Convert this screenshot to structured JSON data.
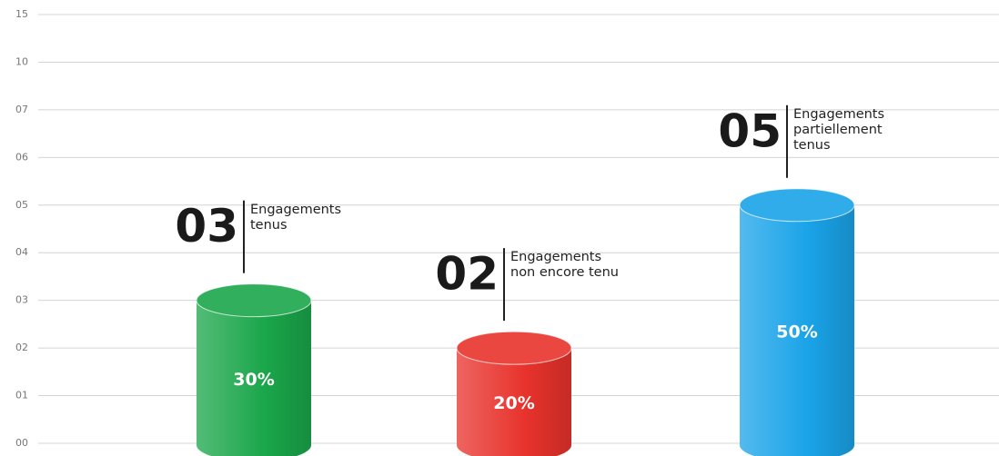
{
  "chart_data": {
    "type": "cylinder-bar",
    "categories": [
      "Engagements\ntenus",
      "Engagements\nnon encore tenu",
      "Engagements\npartiellement\ntenus"
    ],
    "values": [
      3,
      2,
      5
    ],
    "value_labels": [
      "03",
      "02",
      "05"
    ],
    "shares": [
      30,
      20,
      50
    ],
    "share_labels": [
      "30%",
      "20%",
      "50%"
    ],
    "colors": [
      "#1aa64a",
      "#e8322c",
      "#1aa3e8"
    ],
    "ylim": [
      0,
      15
    ],
    "yticks": [
      {
        "value": 0,
        "label": "00"
      },
      {
        "value": 1,
        "label": "01"
      },
      {
        "value": 2,
        "label": "02"
      },
      {
        "value": 3,
        "label": "03"
      },
      {
        "value": 4,
        "label": "04"
      },
      {
        "value": 5,
        "label": "05"
      },
      {
        "value": 6,
        "label": "06"
      },
      {
        "value": 7,
        "label": "07"
      },
      {
        "value": 10,
        "label": "10"
      },
      {
        "value": 15,
        "label": "15"
      }
    ],
    "grid": true
  }
}
